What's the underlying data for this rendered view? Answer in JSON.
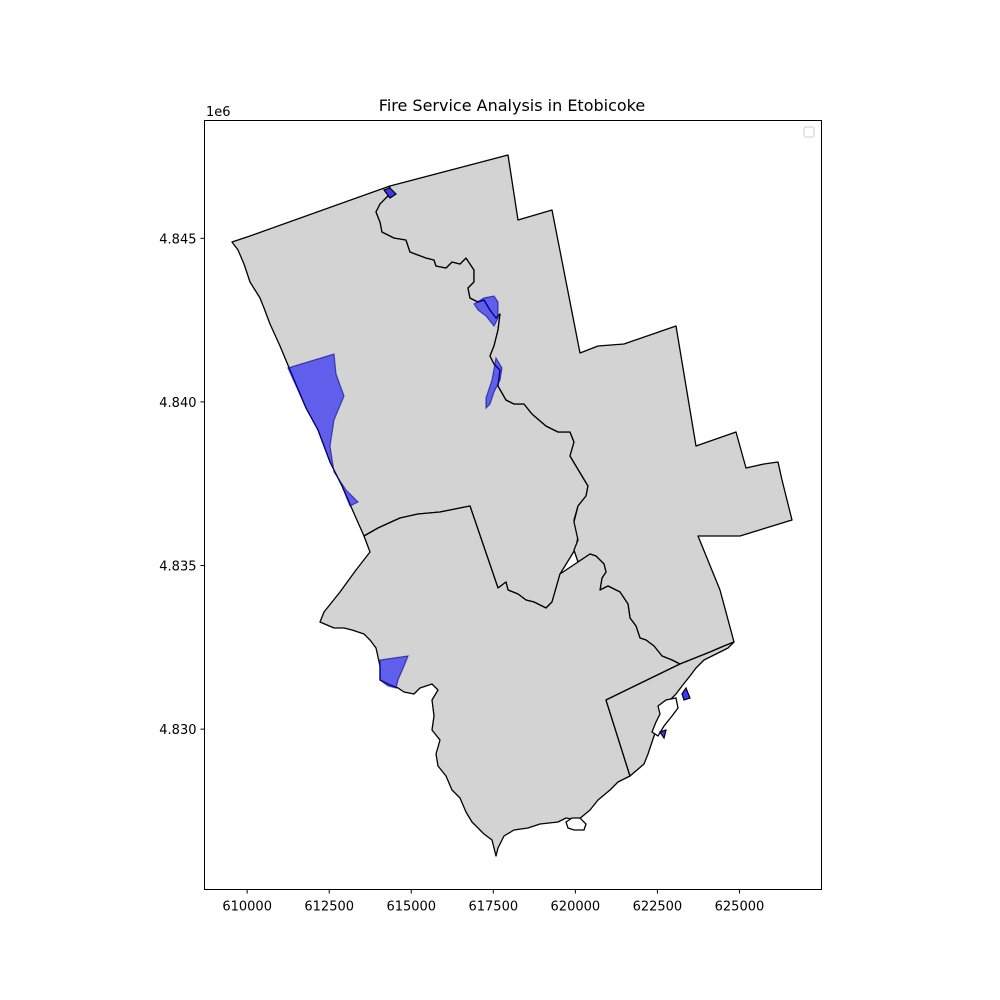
{
  "chart_data": {
    "type": "map",
    "title": "Fire Service Analysis in Etobicoke",
    "x_ticks": [
      "610000",
      "612500",
      "615000",
      "617500",
      "620000",
      "622500",
      "625000"
    ],
    "y_ticks": [
      "4.830",
      "4.835",
      "4.840",
      "4.845"
    ],
    "y_offset_label": "1e6",
    "x_range": [
      608700,
      627500
    ],
    "y_range": [
      4825100,
      4848600
    ],
    "legend": {
      "position": "upper-right",
      "entries": []
    },
    "grid": false,
    "colors": {
      "district_fill": "#d3d3d3",
      "district_edge": "#000000",
      "coverage_fill": "#0000ff",
      "background": "#ffffff"
    }
  }
}
